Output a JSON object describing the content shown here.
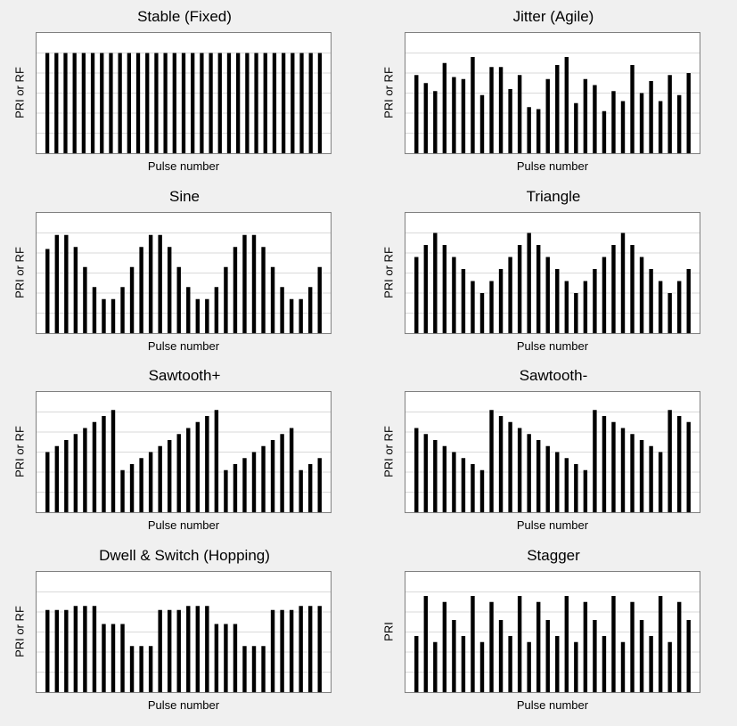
{
  "chart_data": [
    {
      "id": "p0",
      "type": "bar",
      "title": "Stable (Fixed)",
      "xlabel": "Pulse number",
      "ylabel": "PRI or RF",
      "ylim": [
        0,
        6
      ],
      "grid": true,
      "values": [
        5,
        5,
        5,
        5,
        5,
        5,
        5,
        5,
        5,
        5,
        5,
        5,
        5,
        5,
        5,
        5,
        5,
        5,
        5,
        5,
        5,
        5,
        5,
        5,
        5,
        5,
        5,
        5,
        5,
        5,
        5
      ]
    },
    {
      "id": "p1",
      "type": "bar",
      "title": "Jitter (Agile)",
      "xlabel": "Pulse number",
      "ylabel": "PRI or RF",
      "ylim": [
        0,
        6
      ],
      "grid": true,
      "values": [
        3.9,
        3.5,
        3.1,
        4.5,
        3.8,
        3.7,
        4.8,
        2.9,
        4.3,
        4.3,
        3.2,
        3.9,
        2.3,
        2.2,
        3.7,
        4.4,
        4.8,
        2.5,
        3.7,
        3.4,
        2.1,
        3.1,
        2.6,
        4.4,
        3.0,
        3.6,
        2.6,
        3.9,
        2.9,
        4.0
      ]
    },
    {
      "id": "p2",
      "type": "bar",
      "title": "Sine",
      "xlabel": "Pulse number",
      "ylabel": "PRI or RF",
      "ylim": [
        0,
        6
      ],
      "grid": true,
      "values": [
        4.2,
        4.9,
        4.9,
        4.3,
        3.3,
        2.3,
        1.7,
        1.7,
        2.3,
        3.3,
        4.3,
        4.9,
        4.9,
        4.3,
        3.3,
        2.3,
        1.7,
        1.7,
        2.3,
        3.3,
        4.3,
        4.9,
        4.9,
        4.3,
        3.3,
        2.3,
        1.7,
        1.7,
        2.3,
        3.3
      ]
    },
    {
      "id": "p3",
      "type": "bar",
      "title": "Triangle",
      "xlabel": "Pulse number",
      "ylabel": "PRI or RF",
      "ylim": [
        0,
        6
      ],
      "grid": true,
      "values": [
        3.8,
        4.4,
        5.0,
        4.4,
        3.8,
        3.2,
        2.6,
        2.0,
        2.6,
        3.2,
        3.8,
        4.4,
        5.0,
        4.4,
        3.8,
        3.2,
        2.6,
        2.0,
        2.6,
        3.2,
        3.8,
        4.4,
        5.0,
        4.4,
        3.8,
        3.2,
        2.6,
        2.0,
        2.6,
        3.2
      ]
    },
    {
      "id": "p4",
      "type": "bar",
      "title": "Sawtooth+",
      "xlabel": "Pulse number",
      "ylabel": "PRI or RF",
      "ylim": [
        0,
        6
      ],
      "grid": true,
      "values": [
        3.0,
        3.3,
        3.6,
        3.9,
        4.2,
        4.5,
        4.8,
        5.1,
        2.1,
        2.4,
        2.7,
        3.0,
        3.3,
        3.6,
        3.9,
        4.2,
        4.5,
        4.8,
        5.1,
        2.1,
        2.4,
        2.7,
        3.0,
        3.3,
        3.6,
        3.9,
        4.2,
        2.1,
        2.4,
        2.7
      ]
    },
    {
      "id": "p5",
      "type": "bar",
      "title": "Sawtooth-",
      "xlabel": "Pulse number",
      "ylabel": "PRI or RF",
      "ylim": [
        0,
        6
      ],
      "grid": true,
      "values": [
        4.2,
        3.9,
        3.6,
        3.3,
        3.0,
        2.7,
        2.4,
        2.1,
        5.1,
        4.8,
        4.5,
        4.2,
        3.9,
        3.6,
        3.3,
        3.0,
        2.7,
        2.4,
        2.1,
        5.1,
        4.8,
        4.5,
        4.2,
        3.9,
        3.6,
        3.3,
        3.0,
        5.1,
        4.8,
        4.5
      ]
    },
    {
      "id": "p6",
      "type": "bar",
      "title": "Dwell & Switch (Hopping)",
      "xlabel": "Pulse number",
      "ylabel": "PRI or RF",
      "ylim": [
        0,
        6
      ],
      "grid": true,
      "values": [
        4.1,
        4.1,
        4.1,
        4.3,
        4.3,
        4.3,
        3.4,
        3.4,
        3.4,
        2.3,
        2.3,
        2.3,
        4.1,
        4.1,
        4.1,
        4.3,
        4.3,
        4.3,
        3.4,
        3.4,
        3.4,
        2.3,
        2.3,
        2.3,
        4.1,
        4.1,
        4.1,
        4.3,
        4.3,
        4.3
      ]
    },
    {
      "id": "p7",
      "type": "bar",
      "title": "Stagger",
      "xlabel": "Pulse number",
      "ylabel": "PRI",
      "ylim": [
        0,
        6
      ],
      "grid": true,
      "values": [
        2.8,
        4.8,
        2.5,
        4.5,
        3.6,
        2.8,
        4.8,
        2.5,
        4.5,
        3.6,
        2.8,
        4.8,
        2.5,
        4.5,
        3.6,
        2.8,
        4.8,
        2.5,
        4.5,
        3.6,
        2.8,
        4.8,
        2.5,
        4.5,
        3.6,
        2.8,
        4.8,
        2.5,
        4.5,
        3.6
      ]
    }
  ]
}
